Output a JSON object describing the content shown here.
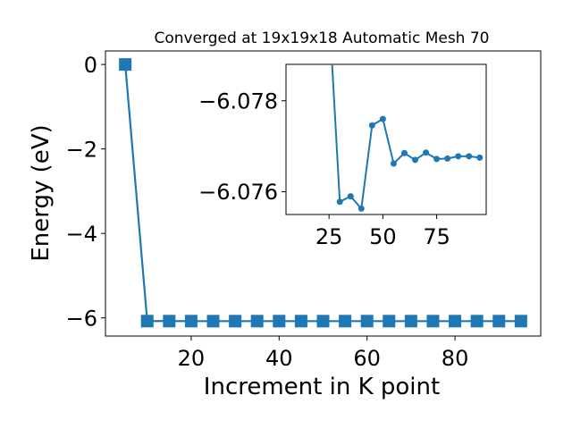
{
  "chart_data": [
    {
      "type": "line",
      "title": "Converged at 19x19x18 Automatic Mesh 70",
      "xlabel": "Increment in K point",
      "ylabel": "Energy (eV)",
      "xlim": [
        0.5,
        99.5
      ],
      "ylim": [
        -6.43,
        0.32
      ],
      "xticks": [
        20,
        40,
        60,
        80
      ],
      "yticks": [
        0,
        -2,
        -4,
        -6
      ],
      "xtick_labels": [
        "20",
        "40",
        "60",
        "80"
      ],
      "ytick_labels": [
        "0",
        "−2",
        "−4",
        "−6"
      ],
      "grid": false,
      "marker": "square",
      "color": "#1f77b4",
      "series": [
        {
          "x": [
            5,
            10,
            15,
            20,
            25,
            30,
            35,
            40,
            45,
            50,
            55,
            60,
            65,
            70,
            75,
            80,
            85,
            90,
            95
          ],
          "values": [
            0.0,
            -6.0758,
            -6.0759,
            -6.0764,
            -6.0773,
            -6.0774,
            -6.0766,
            -6.0765,
            -6.0764,
            -6.0768,
            -6.0764,
            -6.0764,
            -6.0764,
            -6.0764,
            -6.0764,
            -6.0764,
            -6.0764,
            -6.0764,
            -6.0764
          ]
        }
      ]
    },
    {
      "type": "line",
      "title": "",
      "xlabel": "",
      "ylabel": "",
      "xlim": [
        5,
        98
      ],
      "ylim": [
        -6.0755,
        -6.0788
      ],
      "yaxis_inverted": true,
      "xticks": [
        25,
        50,
        75
      ],
      "yticks": [
        -6.078,
        -6.076
      ],
      "xtick_labels": [
        "25",
        "50",
        "75"
      ],
      "ytick_labels": [
        "−6.078",
        "−6.076"
      ],
      "grid": false,
      "marker": "circle",
      "color": "#1f77b4",
      "series": [
        {
          "x": [
            25,
            30,
            35,
            40,
            45,
            50,
            55,
            60,
            65,
            70,
            75,
            80,
            85,
            90,
            95
          ],
          "values": [
            -6.08,
            -6.07578,
            -6.0759,
            -6.07563,
            -6.07746,
            -6.0776,
            -6.07662,
            -6.07685,
            -6.0767,
            -6.07686,
            -6.07672,
            -6.07673,
            -6.07678,
            -6.07678,
            -6.07675
          ]
        }
      ]
    }
  ]
}
